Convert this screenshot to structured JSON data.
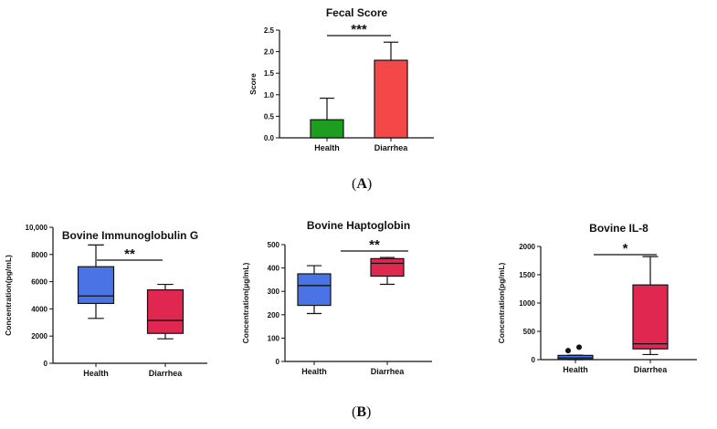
{
  "panel_labels": {
    "a": "A",
    "b": "B"
  },
  "chart_data": [
    {
      "type": "bar",
      "title": "Fecal Score",
      "ylabel": "Score",
      "xlabel": "",
      "categories": [
        "Health",
        "Diarrhea"
      ],
      "values": [
        0.42,
        1.8
      ],
      "errors": [
        0.5,
        0.42
      ],
      "colors": [
        "#1e9e1e",
        "#f44848"
      ],
      "ylim": [
        0,
        2.5
      ],
      "yticks": [
        "0.0",
        "0.5",
        "1.0",
        "1.5",
        "2.0",
        "2.5"
      ],
      "significance": "***"
    },
    {
      "type": "box",
      "title": "Bovine Immunoglobulin G",
      "ylabel": "Concentration(pg/mL)",
      "categories": [
        "Health",
        "Diarrhea"
      ],
      "ylim": [
        0,
        10000
      ],
      "yticks": [
        "0",
        "2000",
        "4000",
        "6000",
        "8000",
        "10,000"
      ],
      "boxes": [
        {
          "min": 3300,
          "q1": 4400,
          "median": 4950,
          "q3": 7100,
          "max": 8700,
          "outliers": [],
          "color": "#4a74e6"
        },
        {
          "min": 1800,
          "q1": 2200,
          "median": 3150,
          "q3": 5400,
          "max": 5800,
          "outliers": [],
          "color": "#e0274f"
        }
      ],
      "significance": "**"
    },
    {
      "type": "box",
      "title": "Bovine Haptoglobin",
      "ylabel": "Concentration(μg/mL)",
      "categories": [
        "Health",
        "Diarrhea"
      ],
      "ylim": [
        0,
        500
      ],
      "yticks": [
        "0",
        "100",
        "200",
        "300",
        "400",
        "500"
      ],
      "boxes": [
        {
          "min": 205,
          "q1": 240,
          "median": 325,
          "q3": 375,
          "max": 410,
          "outliers": [],
          "color": "#4a74e6"
        },
        {
          "min": 330,
          "q1": 365,
          "median": 420,
          "q3": 440,
          "max": 445,
          "outliers": [],
          "color": "#e0274f"
        }
      ],
      "significance": "**"
    },
    {
      "type": "box",
      "title": "Bovine IL-8",
      "ylabel": "Concentration(pg/mL)",
      "categories": [
        "Health",
        "Diarrhea"
      ],
      "ylim": [
        0,
        2000
      ],
      "yticks": [
        "0",
        "500",
        "1000",
        "1500",
        "2000"
      ],
      "boxes": [
        {
          "min": 0,
          "q1": 5,
          "median": 30,
          "q3": 75,
          "max": 80,
          "outliers": [
            160,
            220
          ],
          "color": "#4a74e6"
        },
        {
          "min": 90,
          "q1": 190,
          "median": 280,
          "q3": 1320,
          "max": 1820,
          "outliers": [],
          "color": "#e0274f"
        }
      ],
      "significance": "*"
    }
  ]
}
